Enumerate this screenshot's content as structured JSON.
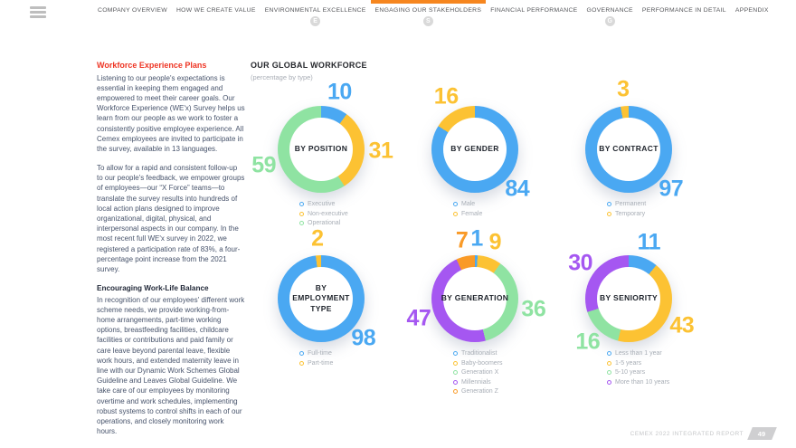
{
  "nav": {
    "active_color": "#F6861F",
    "items": [
      {
        "label": "COMPANY OVERVIEW",
        "badge": "",
        "active": false
      },
      {
        "label": "HOW WE CREATE VALUE",
        "badge": "",
        "active": false
      },
      {
        "label": "ENVIRONMENTAL EXCELLENCE",
        "badge": "E",
        "active": false
      },
      {
        "label": "ENGAGING OUR STAKEHOLDERS",
        "badge": "S",
        "active": true
      },
      {
        "label": "FINANCIAL PERFORMANCE",
        "badge": "",
        "active": false
      },
      {
        "label": "GOVERNANCE",
        "badge": "G",
        "active": false
      },
      {
        "label": "PERFORMANCE IN DETAIL",
        "badge": "",
        "active": false
      },
      {
        "label": "APPENDIX",
        "badge": "",
        "active": false
      }
    ]
  },
  "article": {
    "heading": "Workforce Experience Plans",
    "para1": "Listening to our people's expectations is essential in keeping them engaged and empowered to meet their career goals. Our Workforce Experience (WE'x) Survey helps us learn from our people as we work to foster a consistently positive employee experience. All Cemex employees are invited to participate in the survey, available in 13 languages.",
    "para2": "To allow for a rapid and consistent follow-up to our people's feedback, we empower groups of employees—our “X Force” teams—to translate the survey results into hundreds of local action plans designed to improve organizational, digital, physical, and interpersonal aspects in our company. In the most recent full WE'x survey in 2022, we registered a participation rate of 83%, a four-percentage point increase from the 2021 survey.",
    "subheading": "Encouraging Work-Life Balance",
    "para3": "In recognition of our employees' different work scheme needs, we provide working-from-home arrangements, part-time working options, breastfeeding facilities, childcare facilities or contributions and paid family or care leave beyond parental leave, flexible work hours, and extended maternity leave in line with our Dynamic Work Schemes Global Guideline and Leaves Global Guideline.  We take care of our employees by monitoring overtime and work schedules, implementing robust systems to control shifts in each of our operations, and closely monitoring work hours."
  },
  "workforce": {
    "title": "OUR GLOBAL WORKFORCE",
    "subtitle": "(percentage by type)"
  },
  "chart_data": [
    {
      "type": "donut",
      "title": "BY POSITION",
      "label_lines": [
        "BY POSITION"
      ],
      "segments": [
        {
          "name": "Executive",
          "value": 10,
          "color": "#4AA8F2"
        },
        {
          "name": "Non-executive",
          "value": 31,
          "color": "#FCC233"
        },
        {
          "name": "Operational",
          "value": 59,
          "color": "#8FE3A2"
        }
      ]
    },
    {
      "type": "donut",
      "title": "BY GENDER",
      "label_lines": [
        "BY GENDER"
      ],
      "segments": [
        {
          "name": "Male",
          "value": 84,
          "color": "#4AA8F2"
        },
        {
          "name": "Female",
          "value": 16,
          "color": "#FCC233"
        }
      ]
    },
    {
      "type": "donut",
      "title": "BY CONTRACT",
      "label_lines": [
        "BY CONTRACT"
      ],
      "segments": [
        {
          "name": "Permanent",
          "value": 97,
          "color": "#4AA8F2"
        },
        {
          "name": "Temporary",
          "value": 3,
          "color": "#FCC233"
        }
      ]
    },
    {
      "type": "donut",
      "title": "BY EMPLOYMENT TYPE",
      "label_lines": [
        "BY",
        "EMPLOYMENT",
        "TYPE"
      ],
      "segments": [
        {
          "name": "Full-time",
          "value": 98,
          "color": "#4AA8F2"
        },
        {
          "name": "Part-time",
          "value": 2,
          "color": "#FCC233"
        }
      ]
    },
    {
      "type": "donut",
      "title": "BY GENERATION",
      "label_lines": [
        "BY GENERATION"
      ],
      "segments": [
        {
          "name": "Traditionalist",
          "value": 1,
          "color": "#4AA8F2"
        },
        {
          "name": "Baby-boomers",
          "value": 9,
          "color": "#FCC233"
        },
        {
          "name": "Generation X",
          "value": 36,
          "color": "#8FE3A2"
        },
        {
          "name": "Millennials",
          "value": 47,
          "color": "#A557F1"
        },
        {
          "name": "Generation Z",
          "value": 7,
          "color": "#F99A27"
        }
      ]
    },
    {
      "type": "donut",
      "title": "BY SENIORITY",
      "label_lines": [
        "BY SENIORITY"
      ],
      "segments": [
        {
          "name": "Less than 1 year",
          "value": 11,
          "color": "#4AA8F2"
        },
        {
          "name": "1-5 years",
          "value": 43,
          "color": "#FCC233"
        },
        {
          "name": "5-10 years",
          "value": 16,
          "color": "#8FE3A2"
        },
        {
          "name": "More than 10 years",
          "value": 30,
          "color": "#A557F1"
        }
      ]
    }
  ],
  "footer": {
    "label": "CEMEX 2022 INTEGRATED REPORT",
    "page": "49"
  }
}
